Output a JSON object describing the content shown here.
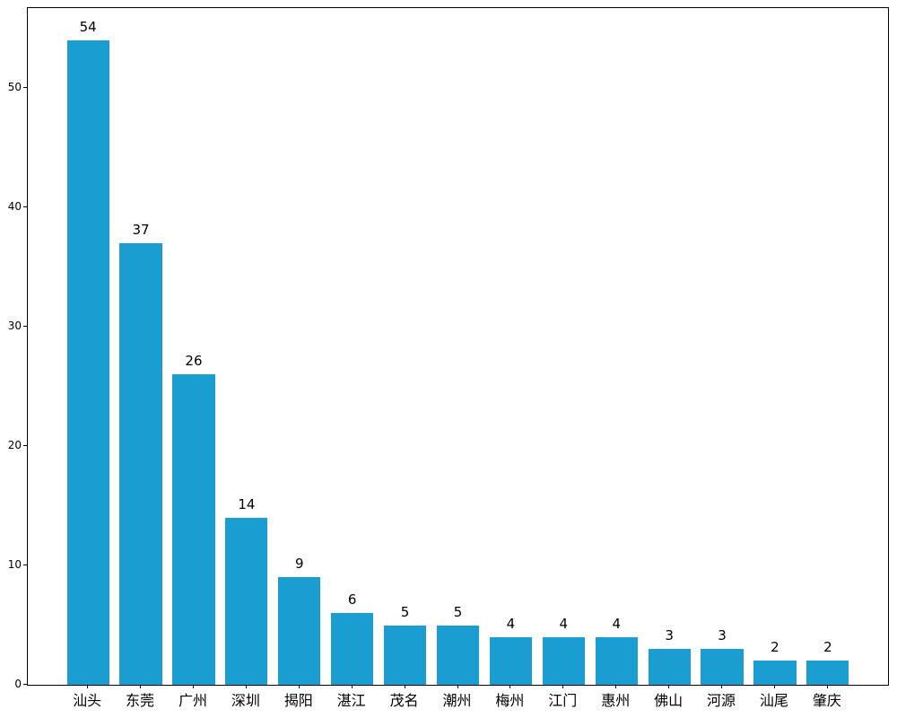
{
  "chart_data": {
    "type": "bar",
    "title": "",
    "xlabel": "",
    "ylabel": "",
    "categories": [
      "汕头",
      "东莞",
      "广州",
      "深圳",
      "揭阳",
      "湛江",
      "茂名",
      "潮州",
      "梅州",
      "江门",
      "惠州",
      "佛山",
      "河源",
      "汕尾",
      "肇庆"
    ],
    "values": [
      54,
      37,
      26,
      14,
      9,
      6,
      5,
      5,
      4,
      4,
      4,
      3,
      3,
      2,
      2
    ],
    "value_labels_shown": true,
    "bar_color": "#1a9dd1",
    "axis_color": "#000000",
    "background_color": "#ffffff",
    "yticks": [
      0,
      10,
      20,
      30,
      40,
      50
    ],
    "ylim": [
      0,
      56.7
    ],
    "bar_width_ratio": 0.8,
    "x_margin": 1.14,
    "grid": false,
    "legend": null
  }
}
